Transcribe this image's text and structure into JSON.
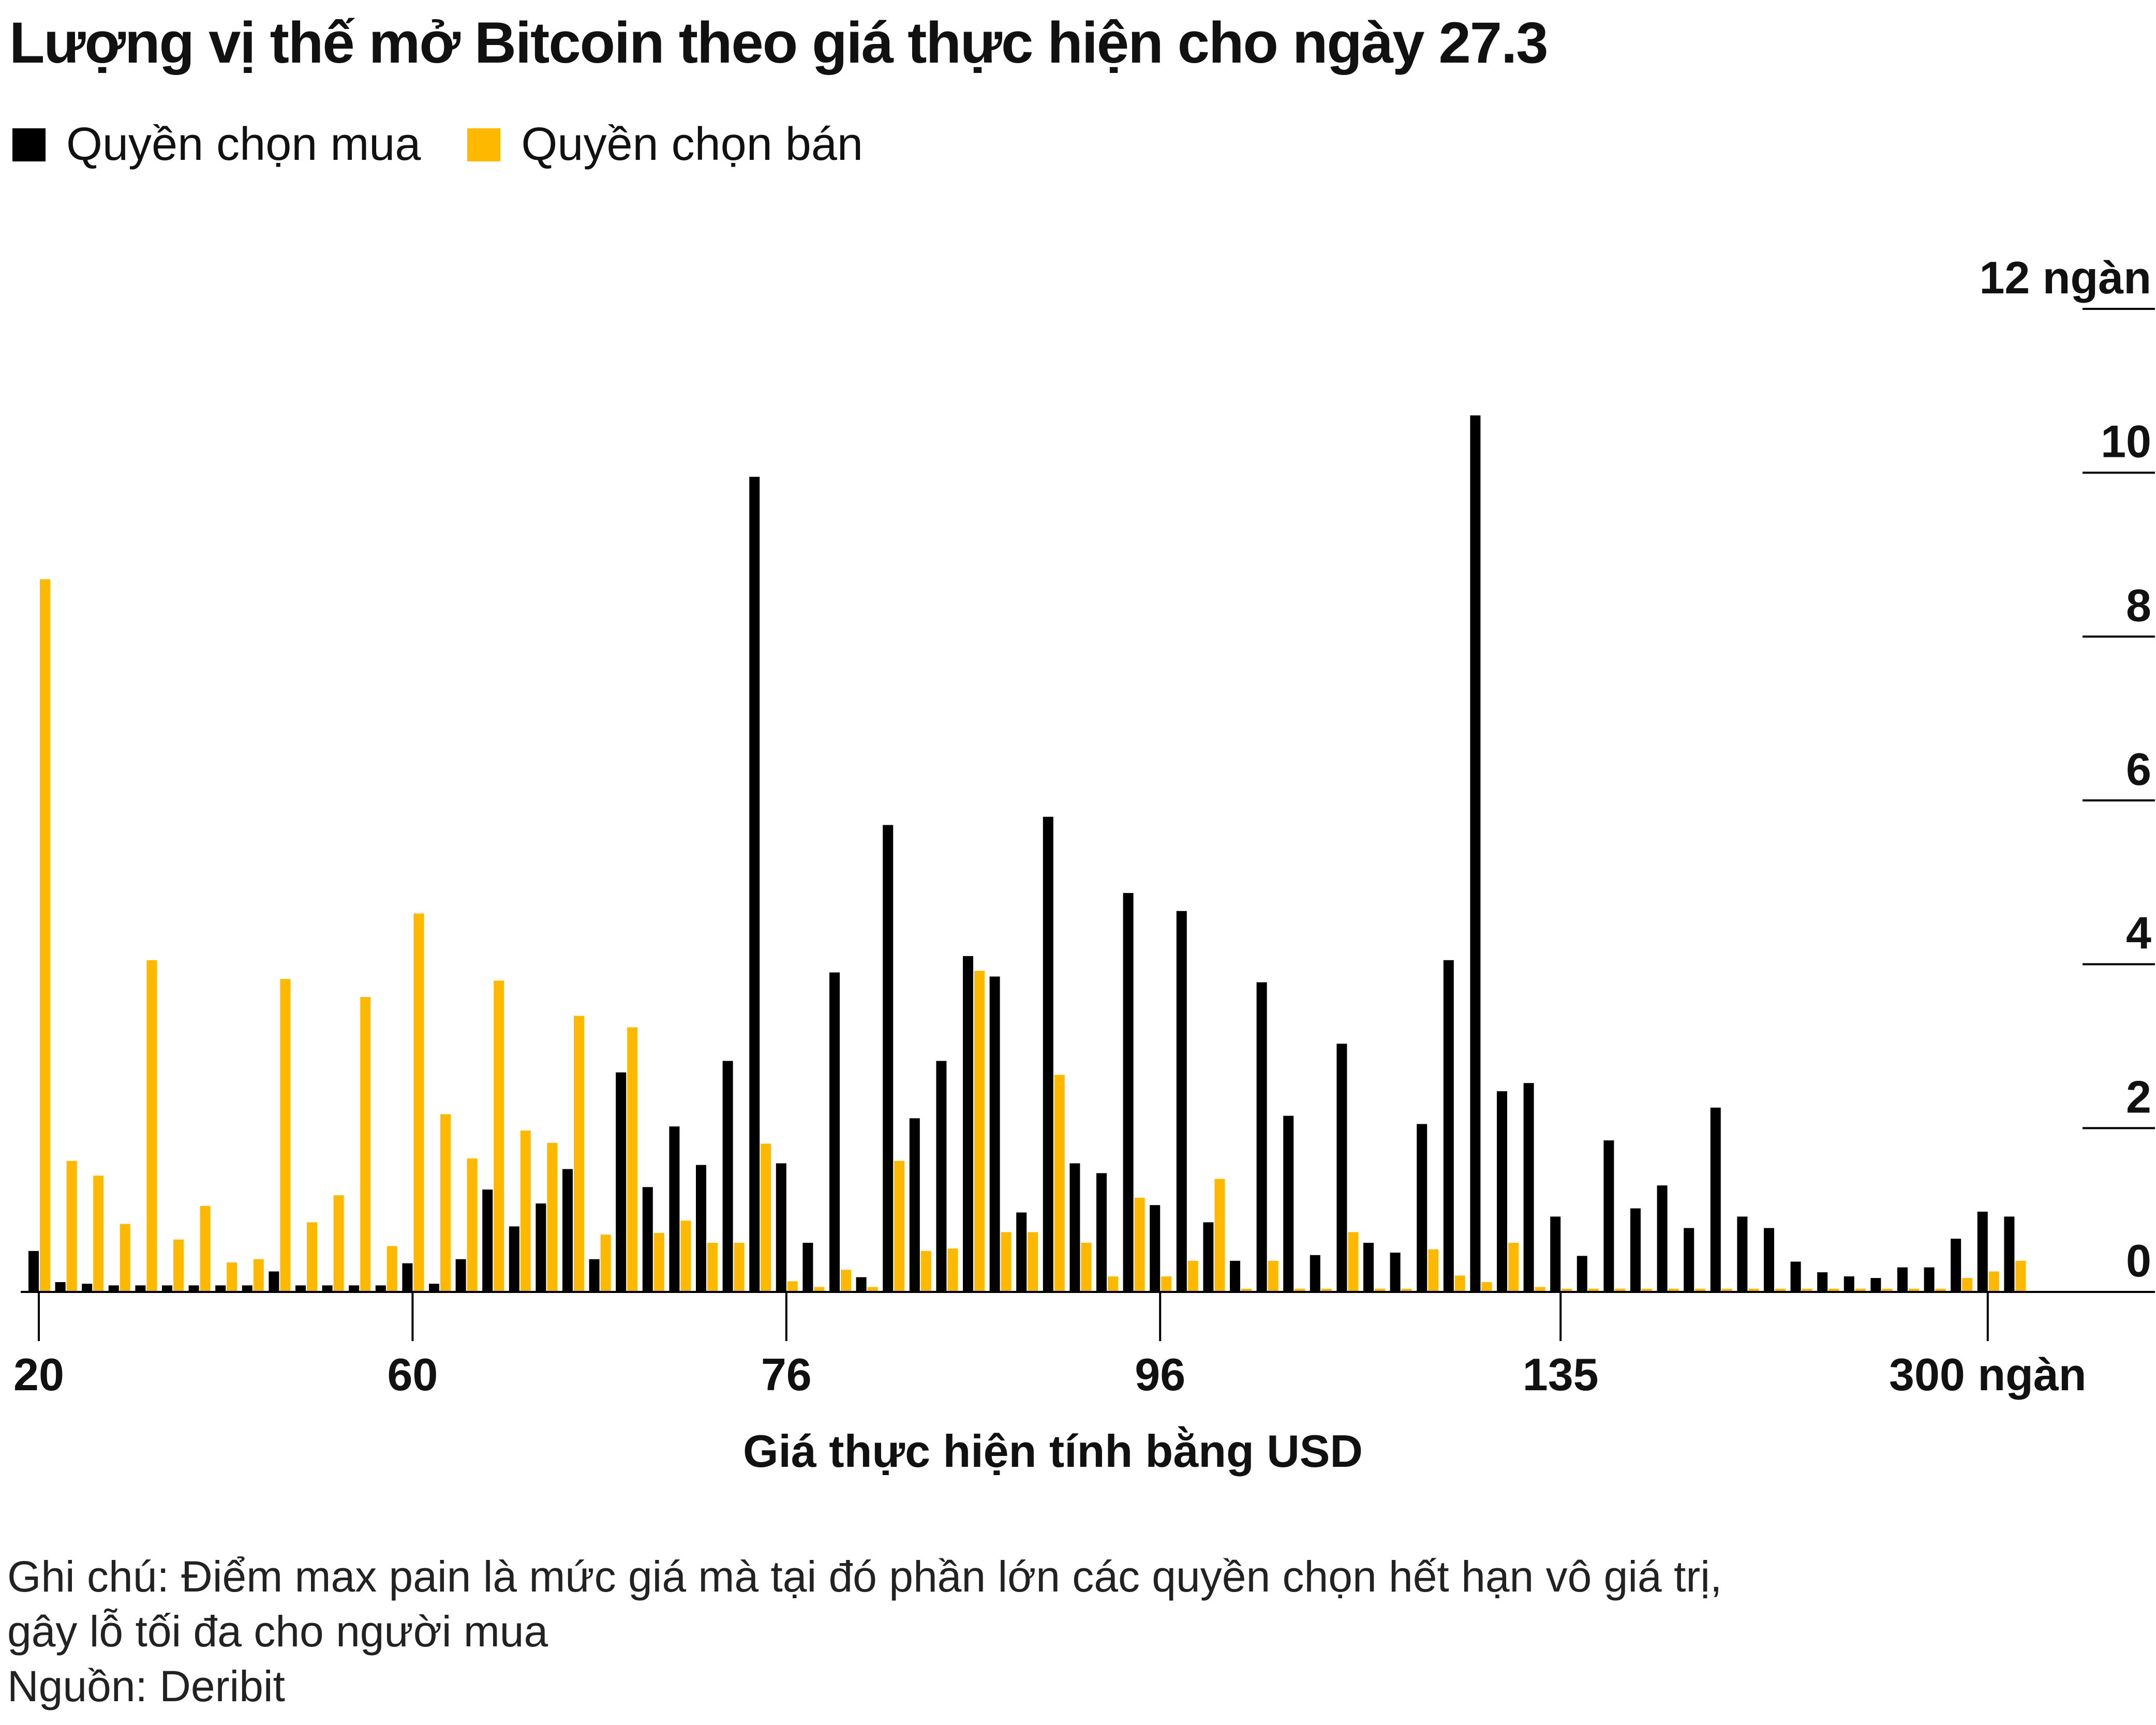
{
  "title": "Lượng vị thế mở Bitcoin theo giá thực hiện cho ngày 27.3",
  "legend": {
    "calls_label": "Quyền chọn mua",
    "puts_label": "Quyền chọn bán"
  },
  "notes": {
    "note_line1": "Ghi chú: Điểm max pain là mức giá mà tại đó phần lớn các quyền chọn hết hạn vô giá trị,",
    "note_line2": "gây lỗ tối đa cho người mua",
    "source": "Nguồn: Deribit"
  },
  "chart_data": {
    "type": "bar",
    "xlabel": "Giá thực hiện tính bằng USD",
    "ylabel": "",
    "ylim": [
      0,
      12
    ],
    "y_ticks": [
      0,
      2,
      4,
      6,
      8,
      10,
      12
    ],
    "y_tick_labels": [
      "0",
      "2",
      "4",
      "6",
      "8",
      "10",
      "12 ngàn"
    ],
    "x_tick_labels": [
      {
        "index": 0,
        "label": "20"
      },
      {
        "index": 14,
        "label": "60"
      },
      {
        "index": 28,
        "label": "76"
      },
      {
        "index": 42,
        "label": "96"
      },
      {
        "index": 57,
        "label": "135"
      },
      {
        "index": 73,
        "label": "300 ngàn"
      }
    ],
    "grid": false,
    "legend_position": "top-left",
    "colors": {
      "calls": "#000000",
      "puts": "#FFB800",
      "axis": "#000000"
    },
    "series": [
      {
        "name": "Quyền chọn mua",
        "values": [
          0.5,
          0.12,
          0.1,
          0.08,
          0.08,
          0.08,
          0.08,
          0.08,
          0.08,
          0.25,
          0.08,
          0.08,
          0.08,
          0.08,
          0.35,
          0.1,
          0.4,
          1.25,
          0.8,
          1.08,
          1.5,
          0.4,
          2.68,
          1.28,
          2.02,
          1.55,
          2.82,
          9.95,
          1.57,
          0.6,
          3.9,
          0.18,
          5.7,
          2.12,
          2.82,
          4.1,
          3.85,
          0.97,
          5.8,
          1.57,
          1.45,
          4.87,
          1.06,
          4.65,
          0.85,
          0.38,
          3.78,
          2.15,
          0.45,
          3.03,
          0.6,
          0.48,
          2.05,
          4.05,
          10.7,
          2.45,
          2.55,
          0.92,
          0.44,
          1.85,
          1.02,
          1.3,
          0.78,
          2.25,
          0.92,
          0.78,
          0.37,
          0.24,
          0.19,
          0.17,
          0.3,
          0.3,
          0.65,
          0.98,
          0.92
        ],
        "values_unit": "thousand contracts"
      },
      {
        "name": "Quyền chọn bán",
        "values": [
          8.7,
          1.6,
          1.42,
          0.83,
          4.05,
          0.64,
          1.05,
          0.36,
          0.4,
          3.82,
          0.85,
          1.18,
          3.6,
          0.56,
          4.62,
          2.17,
          1.63,
          3.8,
          1.97,
          1.82,
          3.37,
          0.7,
          3.23,
          0.72,
          0.87,
          0.6,
          0.6,
          1.81,
          0.13,
          0.06,
          0.27,
          0.06,
          1.6,
          0.5,
          0.53,
          3.92,
          0.73,
          0.73,
          2.65,
          0.6,
          0.19,
          1.15,
          0.19,
          0.38,
          1.38,
          0.04,
          0.38,
          0.04,
          0.04,
          0.73,
          0.04,
          0.04,
          0.52,
          0.2,
          0.12,
          0.6,
          0.06,
          0.04,
          0.04,
          0.04,
          0.04,
          0.04,
          0.04,
          0.04,
          0.04,
          0.04,
          0.04,
          0.04,
          0.04,
          0.04,
          0.04,
          0.04,
          0.17,
          0.25,
          0.38
        ],
        "values_unit": "thousand contracts"
      }
    ]
  }
}
